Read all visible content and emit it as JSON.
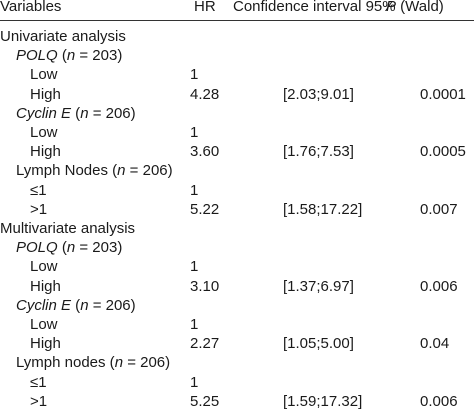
{
  "header": {
    "variables": "Variables",
    "hr": "HR",
    "ci": "Confidence interval 95%",
    "p_italic": "P",
    "p_rest": " (Wald)"
  },
  "rows": [
    {
      "level": 0,
      "label": "Univariate analysis",
      "hr": "",
      "ci": "",
      "p": ""
    },
    {
      "level": 1,
      "label_italic": "POLQ",
      "label_pre": " (",
      "label_n": "n",
      "label_post": " = 203)",
      "hr": "",
      "ci": "",
      "p": ""
    },
    {
      "level": 2,
      "label": "Low",
      "hr": "1",
      "ci": "",
      "p": ""
    },
    {
      "level": 2,
      "label": "High",
      "hr": "4.28",
      "ci": "[2.03;9.01]",
      "p": "0.0001"
    },
    {
      "level": 1,
      "label_italic": "Cyclin E",
      "label_pre": " (",
      "label_n": "n",
      "label_post": " = 206)",
      "hr": "",
      "ci": "",
      "p": ""
    },
    {
      "level": 2,
      "label": "Low",
      "hr": "1",
      "ci": "",
      "p": ""
    },
    {
      "level": 2,
      "label": "High",
      "hr": "3.60",
      "ci": "[1.76;7.53]",
      "p": "0.0005"
    },
    {
      "level": 1,
      "label_plain": "Lymph Nodes",
      "label_pre": " (",
      "label_n": "n",
      "label_post": " = 206)",
      "hr": "",
      "ci": "",
      "p": ""
    },
    {
      "level": 2,
      "label": "≤1",
      "hr": "1",
      "ci": "",
      "p": ""
    },
    {
      "level": 2,
      "label": ">1",
      "hr": "5.22",
      "ci": "[1.58;17.22]",
      "p": "0.007"
    },
    {
      "level": 0,
      "label": "Multivariate analysis",
      "hr": "",
      "ci": "",
      "p": ""
    },
    {
      "level": 1,
      "label_italic": "POLQ",
      "label_pre": " (",
      "label_n": "n",
      "label_post": " = 203)",
      "hr": "",
      "ci": "",
      "p": ""
    },
    {
      "level": 2,
      "label": "Low",
      "hr": "1",
      "ci": "",
      "p": ""
    },
    {
      "level": 2,
      "label": "High",
      "hr": "3.10",
      "ci": "[1.37;6.97]",
      "p": "0.006"
    },
    {
      "level": 1,
      "label_italic": "Cyclin E",
      "label_pre": " (",
      "label_n": "n",
      "label_post": " = 206)",
      "hr": "",
      "ci": "",
      "p": ""
    },
    {
      "level": 2,
      "label": "Low",
      "hr": "1",
      "ci": "",
      "p": ""
    },
    {
      "level": 2,
      "label": "High",
      "hr": "2.27",
      "ci": "[1.05;5.00]",
      "p": "0.04"
    },
    {
      "level": 1,
      "label_plain": "Lymph nodes",
      "label_pre": " (",
      "label_n": "n",
      "label_post": " = 206)",
      "hr": "",
      "ci": "",
      "p": ""
    },
    {
      "level": 2,
      "label": "≤1",
      "hr": "1",
      "ci": "",
      "p": ""
    },
    {
      "level": 2,
      "label": ">1",
      "hr": "5.25",
      "ci": "[1.59;17.32]",
      "p": "0.006"
    }
  ]
}
